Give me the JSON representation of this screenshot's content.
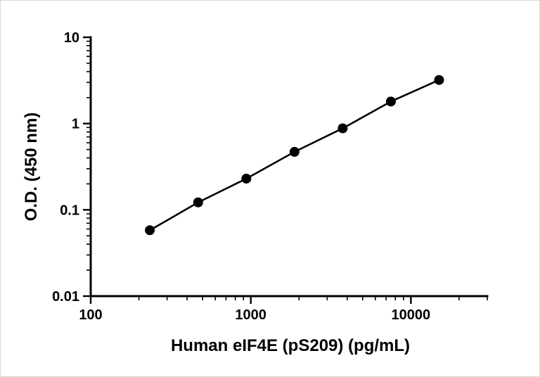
{
  "chart_data": {
    "type": "line",
    "title": "",
    "xlabel": "Human eIF4E (pS209) (pg/mL)",
    "ylabel": "O.D. (450 nm)",
    "x_scale": "log",
    "y_scale": "log",
    "xlim": [
      100,
      30000
    ],
    "ylim": [
      0.01,
      10
    ],
    "grid": false,
    "legend": false,
    "x_ticks": [
      {
        "value": 100,
        "label": "100"
      },
      {
        "value": 1000,
        "label": "1000"
      },
      {
        "value": 10000,
        "label": "10000"
      }
    ],
    "y_ticks": [
      {
        "value": 0.01,
        "label": "0.01"
      },
      {
        "value": 0.1,
        "label": "0.1"
      },
      {
        "value": 1,
        "label": "1"
      },
      {
        "value": 10,
        "label": "10"
      }
    ],
    "series": [
      {
        "name": "standard-curve",
        "marker": "circle",
        "color": "#000000",
        "points": [
          {
            "x": 234,
            "y": 0.058
          },
          {
            "x": 469,
            "y": 0.122
          },
          {
            "x": 938,
            "y": 0.23
          },
          {
            "x": 1875,
            "y": 0.47
          },
          {
            "x": 3750,
            "y": 0.88
          },
          {
            "x": 7500,
            "y": 1.8
          },
          {
            "x": 15000,
            "y": 3.2
          }
        ]
      }
    ]
  },
  "styles": {
    "axis_color": "#000000",
    "line_color": "#000000",
    "marker_color": "#000000",
    "background": "#ffffff"
  }
}
